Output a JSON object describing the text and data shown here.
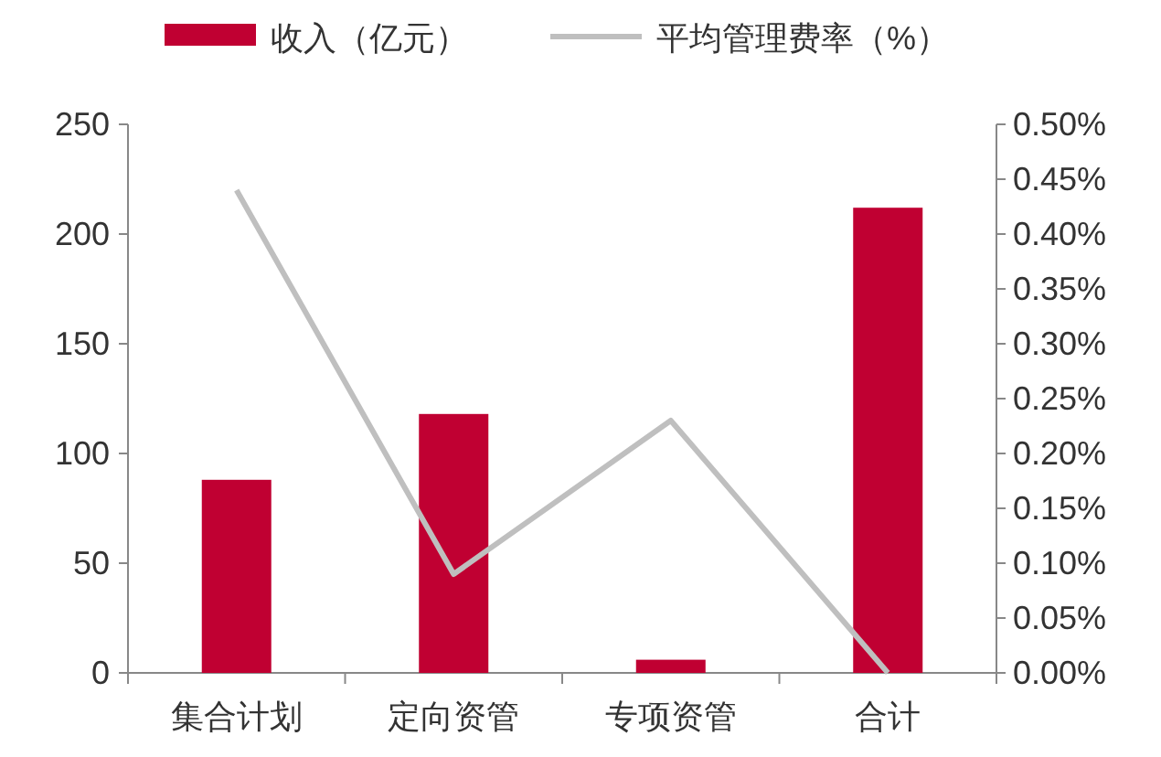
{
  "chart_data": {
    "type": "bar",
    "categories": [
      "集合计划",
      "定向资管",
      "专项资管",
      "合计"
    ],
    "series": [
      {
        "name": "收入（亿元）",
        "color": "#c00032",
        "values": [
          88,
          118,
          6,
          212
        ]
      },
      {
        "name": "平均管理费率（%）",
        "type": "line",
        "axis": "y2",
        "color": "#bfbfbf",
        "values": [
          0.44,
          0.09,
          0.23,
          0.0
        ]
      }
    ],
    "ylim": [
      0,
      250
    ],
    "yticks": [
      0,
      50,
      100,
      150,
      200,
      250
    ],
    "y2lim": [
      0,
      0.5
    ],
    "y2ticks": [
      {
        "value": 0,
        "label": "0.00%"
      },
      {
        "value": 0.05,
        "label": "0.05%"
      },
      {
        "value": 0.1,
        "label": "0.10%"
      },
      {
        "value": 0.15,
        "label": "0.15%"
      },
      {
        "value": 0.2,
        "label": "0.20%"
      },
      {
        "value": 0.25,
        "label": "0.25%"
      },
      {
        "value": 0.3,
        "label": "0.30%"
      },
      {
        "value": 0.35,
        "label": "0.35%"
      },
      {
        "value": 0.4,
        "label": "0.40%"
      },
      {
        "value": 0.45,
        "label": "0.45%"
      },
      {
        "value": 0.5,
        "label": "0.50%"
      }
    ],
    "legend": "top",
    "grid": false
  }
}
